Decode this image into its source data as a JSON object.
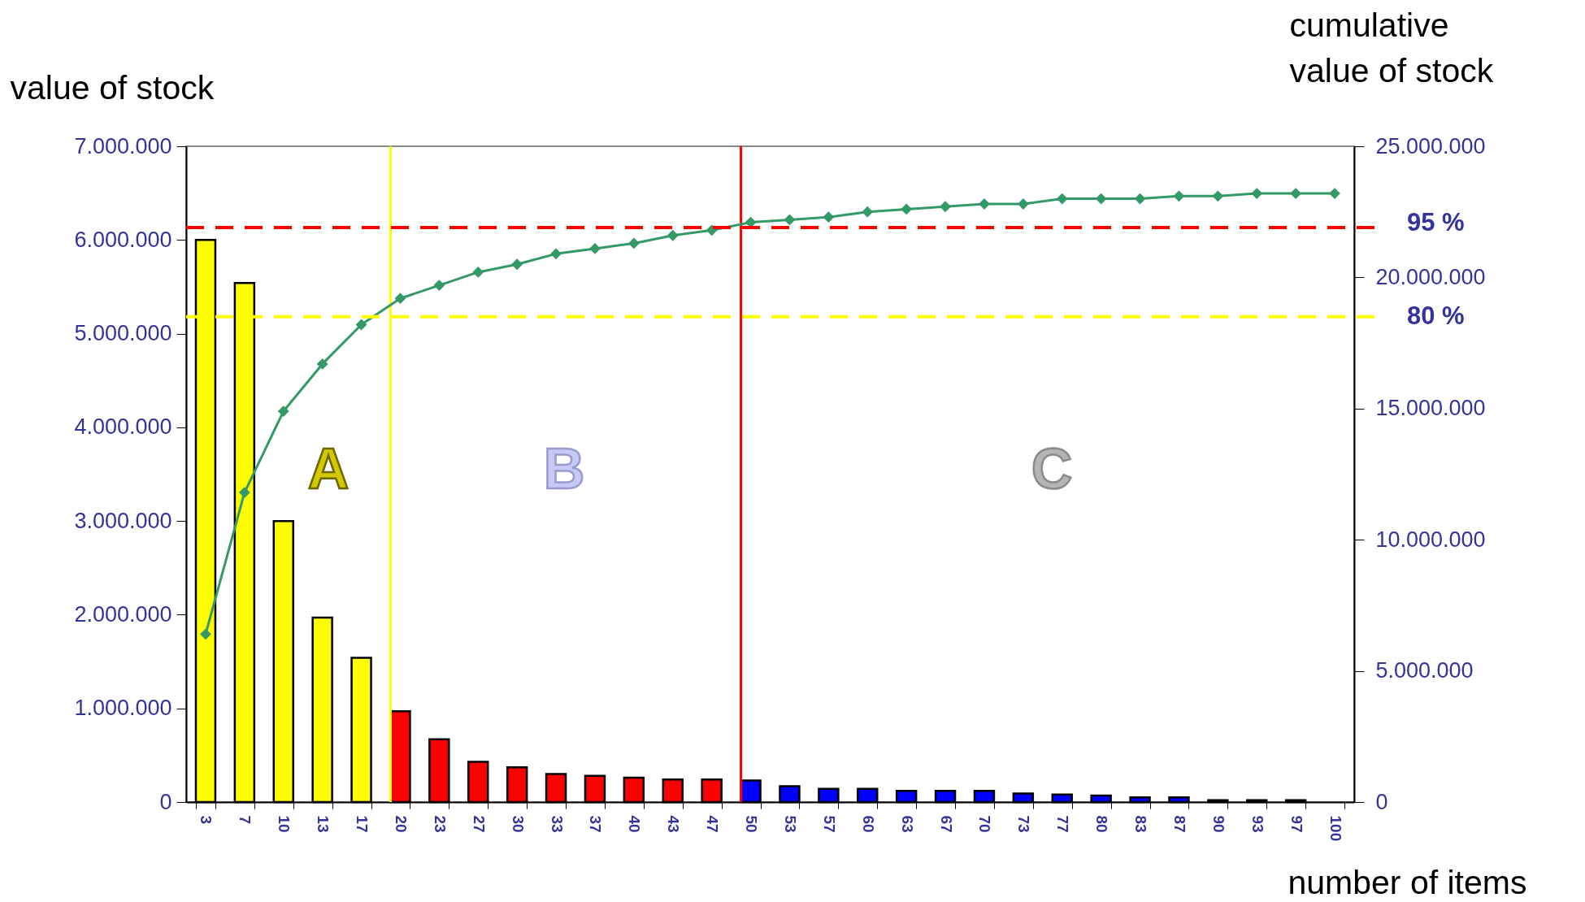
{
  "chart_data": {
    "type": "bar",
    "xlabel": "number of items",
    "ylabel": "value of stock",
    "y2label": "cumulative\nvalue of stock",
    "categories": [
      "3",
      "7",
      "10",
      "13",
      "17",
      "20",
      "23",
      "27",
      "30",
      "33",
      "37",
      "40",
      "43",
      "47",
      "50",
      "53",
      "57",
      "60",
      "63",
      "67",
      "70",
      "73",
      "77",
      "80",
      "83",
      "87",
      "90",
      "93",
      "97",
      "100"
    ],
    "series": [
      {
        "colors": [
          "#ffff00",
          "#ffff00",
          "#ffff00",
          "#ffff00",
          "#ffff00",
          "#ff0000",
          "#ff0000",
          "#ff0000",
          "#ff0000",
          "#ff0000",
          "#ff0000",
          "#ff0000",
          "#ff0000",
          "#ff0000",
          "#0000ff",
          "#0000ff",
          "#0000ff",
          "#0000ff",
          "#0000ff",
          "#0000ff",
          "#0000ff",
          "#0000ff",
          "#0000ff",
          "#0000ff",
          "#0000ff",
          "#0000ff",
          "#0000ff",
          "#0000ff",
          "#0000ff",
          "#0000ff"
        ],
        "values": [
          6000000,
          5540000,
          3000000,
          1970000,
          1540000,
          970000,
          670000,
          430000,
          370000,
          300000,
          280000,
          260000,
          240000,
          240000,
          230000,
          170000,
          140000,
          140000,
          120000,
          120000,
          120000,
          90000,
          80000,
          70000,
          50000,
          50000,
          20000,
          20000,
          20000,
          null
        ]
      },
      {
        "type": "line",
        "axis": "y2",
        "color": "#339966",
        "marker": "diamond",
        "values": [
          6400000,
          11800000,
          14900000,
          16700000,
          18200000,
          19200000,
          19700000,
          20200000,
          20500000,
          20900000,
          21100000,
          21300000,
          21600000,
          21800000,
          22100000,
          22200000,
          22300000,
          22500000,
          22600000,
          22700000,
          22800000,
          22800000,
          23000000,
          23000000,
          23000000,
          23100000,
          23100000,
          23200000,
          23200000,
          23200000
        ]
      }
    ],
    "ylim": [
      0,
      7000000
    ],
    "yticks": [
      0,
      {
        "value": 1000000,
        "label": "1.000.000"
      },
      {
        "value": 2000000,
        "label": "2.000.000"
      },
      {
        "value": 3000000,
        "label": "3.000.000"
      },
      {
        "value": 4000000,
        "label": "4.000.000"
      },
      {
        "value": 5000000,
        "label": "5.000.000"
      },
      {
        "value": 6000000,
        "label": "6.000.000"
      },
      {
        "value": 7000000,
        "label": "7.000.000"
      }
    ],
    "y2lim": [
      0,
      25000000
    ],
    "y2ticks": [
      0,
      {
        "value": 5000000,
        "label": "5.000.000"
      },
      {
        "value": 10000000,
        "label": "10.000.000"
      },
      {
        "value": 15000000,
        "label": "15.000.000"
      },
      {
        "value": 20000000,
        "label": "20.000.000"
      },
      {
        "value": 25000000,
        "label": "25.000.000"
      }
    ],
    "ref_lines": [
      {
        "axis": "y2",
        "value": 21900000,
        "color": "#ff0000",
        "line_style": "dashed"
      },
      {
        "axis": "y2",
        "value": 18500000,
        "color": "#ffff00",
        "line_style": "dashed"
      },
      {
        "axis": "x",
        "value": "20",
        "color": "#ffff00"
      },
      {
        "axis": "x",
        "value": "50",
        "color": "#ff0000"
      }
    ],
    "annotations": [
      "A",
      "B",
      "C",
      "95 %",
      "80 %"
    ],
    "grid": false
  }
}
